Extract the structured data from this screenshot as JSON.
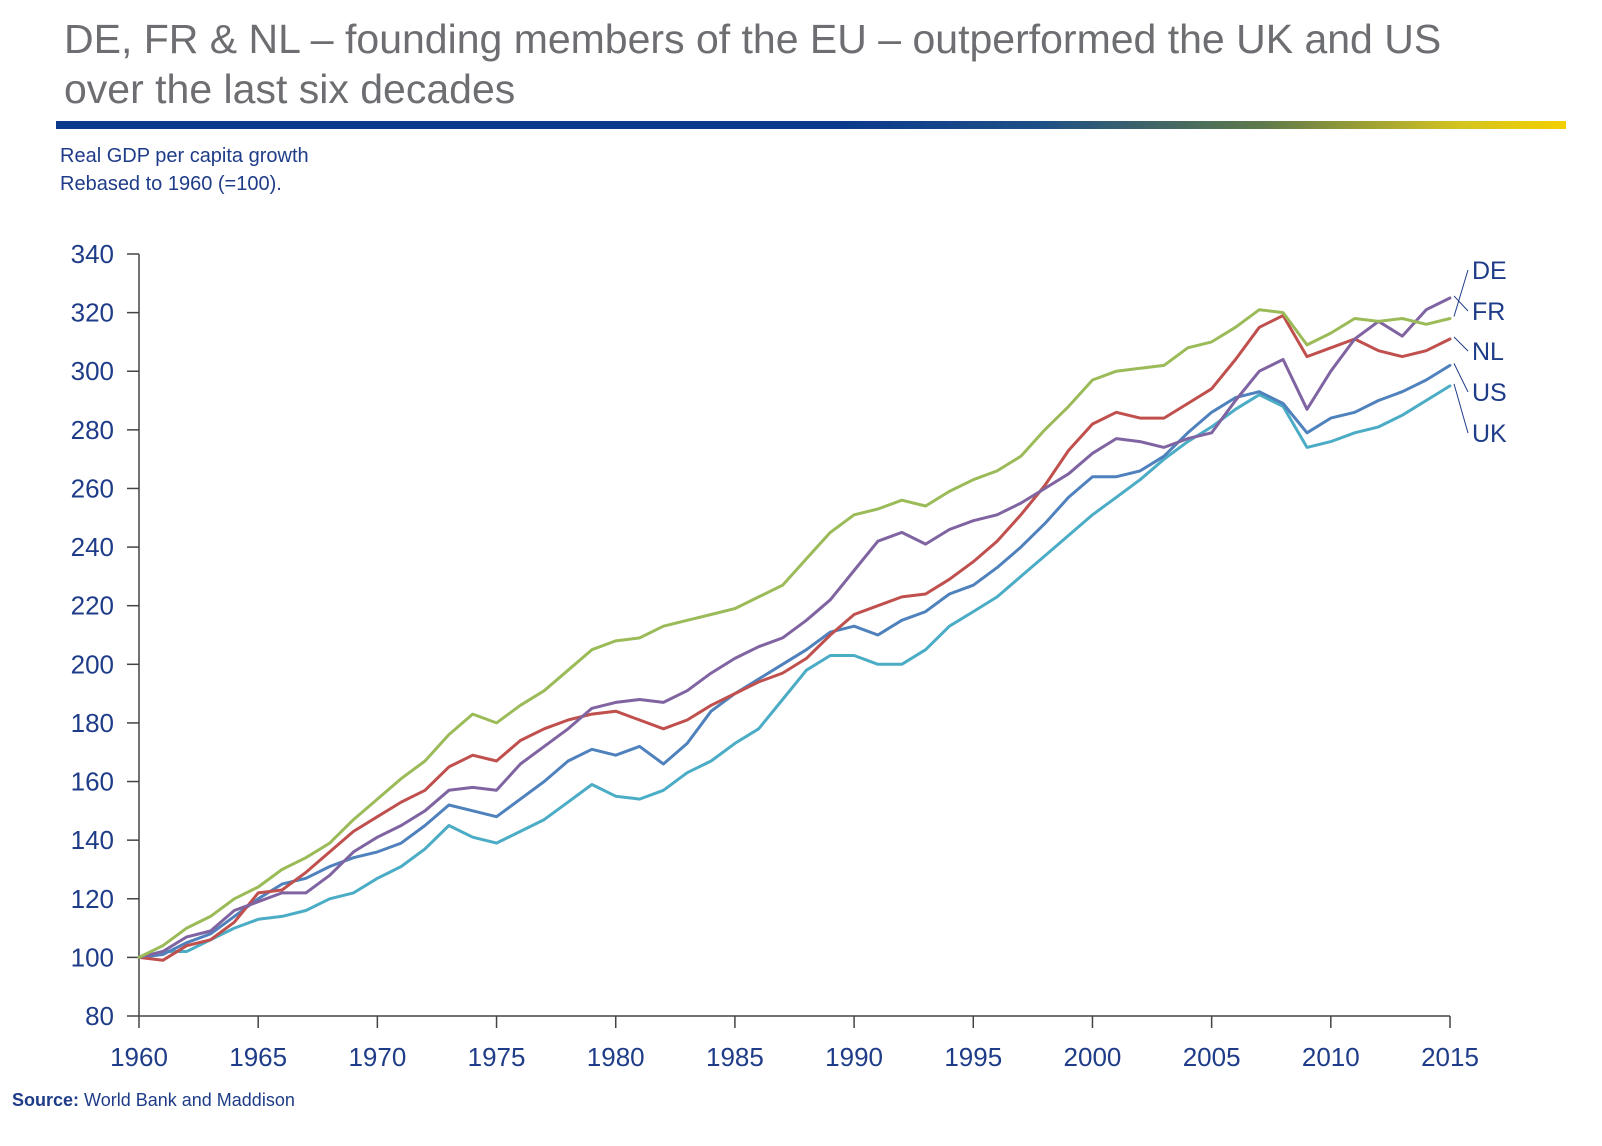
{
  "header": {
    "title_line1": "DE, FR & NL – founding members of the EU – outperformed the UK and US",
    "title_line2": "over the last six decades"
  },
  "subtitle": {
    "line1": "Real GDP per capita growth",
    "line2": "Rebased to 1960 (=100)."
  },
  "footer": {
    "source_label": "Source:",
    "source_text": "World Bank and Maddison"
  },
  "colors": {
    "DE": "#9bbb59",
    "FR": "#8064a2",
    "NL": "#c0504d",
    "US": "#4f81bd",
    "UK": "#4bacc6",
    "axis_text": "#1f3c88",
    "title_text": "#6d6e71"
  },
  "chart_data": {
    "type": "line",
    "title": "",
    "xlabel": "",
    "ylabel": "",
    "xlim": [
      1960,
      2015
    ],
    "ylim": [
      80,
      340
    ],
    "yticks": [
      80,
      100,
      120,
      140,
      160,
      180,
      200,
      220,
      240,
      260,
      280,
      300,
      320,
      340
    ],
    "xticks": [
      1960,
      1965,
      1970,
      1975,
      1980,
      1985,
      1990,
      1995,
      2000,
      2005,
      2010,
      2015
    ],
    "grid": false,
    "legend": "end-of-line labels (right)",
    "x": [
      1960,
      1961,
      1962,
      1963,
      1964,
      1965,
      1966,
      1967,
      1968,
      1969,
      1970,
      1971,
      1972,
      1973,
      1974,
      1975,
      1976,
      1977,
      1978,
      1979,
      1980,
      1981,
      1982,
      1983,
      1984,
      1985,
      1986,
      1987,
      1988,
      1989,
      1990,
      1991,
      1992,
      1993,
      1994,
      1995,
      1996,
      1997,
      1998,
      1999,
      2000,
      2001,
      2002,
      2003,
      2004,
      2005,
      2006,
      2007,
      2008,
      2009,
      2010,
      2011,
      2012,
      2013,
      2014,
      2015
    ],
    "series": [
      {
        "name": "DE",
        "values": [
          100,
          104,
          110,
          114,
          120,
          124,
          130,
          134,
          139,
          147,
          154,
          161,
          167,
          176,
          183,
          180,
          186,
          191,
          198,
          205,
          208,
          209,
          213,
          215,
          217,
          219,
          223,
          227,
          236,
          245,
          251,
          253,
          256,
          254,
          259,
          263,
          266,
          271,
          280,
          288,
          297,
          300,
          301,
          302,
          308,
          310,
          315,
          321,
          320,
          309,
          313,
          318,
          317,
          318,
          316,
          318
        ]
      },
      {
        "name": "FR",
        "values": [
          100,
          102,
          107,
          109,
          116,
          119,
          122,
          122,
          128,
          136,
          141,
          145,
          150,
          157,
          158,
          157,
          166,
          172,
          178,
          185,
          187,
          188,
          187,
          191,
          197,
          202,
          206,
          209,
          215,
          222,
          232,
          242,
          245,
          241,
          246,
          249,
          251,
          255,
          260,
          265,
          272,
          277,
          276,
          274,
          277,
          279,
          290,
          300,
          304,
          287,
          300,
          311,
          317,
          312,
          321,
          325
        ]
      },
      {
        "name": "NL",
        "values": [
          100,
          99,
          104,
          106,
          112,
          122,
          123,
          129,
          136,
          143,
          148,
          153,
          157,
          165,
          169,
          167,
          174,
          178,
          181,
          183,
          184,
          181,
          178,
          181,
          186,
          190,
          194,
          197,
          202,
          210,
          217,
          220,
          223,
          224,
          229,
          235,
          242,
          251,
          261,
          273,
          282,
          286,
          284,
          284,
          289,
          294,
          304,
          315,
          319,
          305,
          308,
          311,
          307,
          305,
          307,
          311
        ]
      },
      {
        "name": "US",
        "values": [
          100,
          101,
          105,
          108,
          114,
          120,
          125,
          127,
          131,
          134,
          136,
          139,
          145,
          152,
          150,
          148,
          154,
          160,
          167,
          171,
          169,
          172,
          166,
          173,
          184,
          190,
          195,
          200,
          205,
          211,
          213,
          210,
          215,
          218,
          224,
          227,
          233,
          240,
          248,
          257,
          264,
          264,
          266,
          271,
          279,
          286,
          291,
          293,
          289,
          279,
          284,
          286,
          290,
          293,
          297,
          302
        ]
      },
      {
        "name": "UK",
        "values": [
          100,
          102,
          102,
          106,
          110,
          113,
          114,
          116,
          120,
          122,
          127,
          131,
          137,
          145,
          141,
          139,
          143,
          147,
          153,
          159,
          155,
          154,
          157,
          163,
          167,
          173,
          178,
          188,
          198,
          203,
          203,
          200,
          200,
          205,
          213,
          218,
          223,
          230,
          237,
          244,
          251,
          257,
          263,
          270,
          276,
          281,
          287,
          292,
          288,
          274,
          276,
          279,
          281,
          285,
          290,
          295
        ]
      }
    ]
  }
}
